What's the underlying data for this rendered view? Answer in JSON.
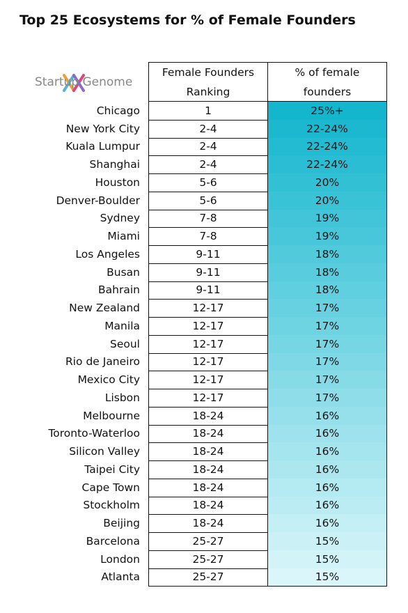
{
  "header": {
    "title": "Top 25 Ecosystems for % of Female Founders",
    "logo_text": "Startup Genome"
  },
  "table": {
    "columns": [
      "Female Founders Ranking",
      "% of female founders"
    ],
    "rows": [
      [
        "Chicago",
        "1",
        "25%+"
      ],
      [
        "New York City",
        "2-4",
        "22-24%"
      ],
      [
        "Kuala Lumpur",
        "2-4",
        "22-24%"
      ],
      [
        "Shanghai",
        "2-4",
        "22-24%"
      ],
      [
        "Houston",
        "5-6",
        "20%"
      ],
      [
        "Denver-Boulder",
        "5-6",
        "20%"
      ],
      [
        "Sydney",
        "7-8",
        "19%"
      ],
      [
        "Miami",
        "7-8",
        "19%"
      ],
      [
        "Los Angeles",
        "9-11",
        "18%"
      ],
      [
        "Busan",
        "9-11",
        "18%"
      ],
      [
        "Bahrain",
        "9-11",
        "18%"
      ],
      [
        "New Zealand",
        "12-17",
        "17%"
      ],
      [
        "Manila",
        "12-17",
        "17%"
      ],
      [
        "Seoul",
        "12-17",
        "17%"
      ],
      [
        "Rio de Janeiro",
        "12-17",
        "17%"
      ],
      [
        "Mexico City",
        "12-17",
        "17%"
      ],
      [
        "Lisbon",
        "12-17",
        "17%"
      ],
      [
        "Melbourne",
        "18-24",
        "16%"
      ],
      [
        "Toronto-Waterloo",
        "18-24",
        "16%"
      ],
      [
        "Silicon Valley",
        "18-24",
        "16%"
      ],
      [
        "Taipei City",
        "18-24",
        "16%"
      ],
      [
        "Cape Town",
        "18-24",
        "16%"
      ],
      [
        "Stockholm",
        "18-24",
        "16%"
      ],
      [
        "Beijing",
        "18-24",
        "16%"
      ],
      [
        "Barcelona",
        "25-27",
        "15%"
      ],
      [
        "London",
        "25-27",
        "15%"
      ],
      [
        "Atlanta",
        "25-27",
        "15%"
      ]
    ]
  }
}
